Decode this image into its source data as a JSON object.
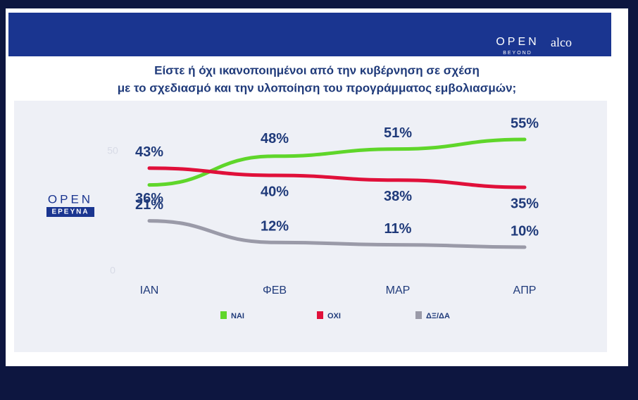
{
  "branding": {
    "open": "OPEN",
    "beyond": "BEYOND",
    "alco": "alco",
    "side_open": "OPEN",
    "side_research": "ΕΡΕΥΝΑ"
  },
  "chart_data": {
    "type": "line",
    "title": "Είστε ή όχι ικανοποιημένοι από την κυβέρνηση σε σχέση",
    "subtitle": "με το σχεδιασμό και την υλοποίηση του προγράμματος εμβολιασμών;",
    "categories": [
      "ΙΑΝ",
      "ΦΕΒ",
      "ΜΑΡ",
      "ΑΠΡ"
    ],
    "series": [
      {
        "name": "ΝΑΙ",
        "color": "#5fd62a",
        "values": [
          36,
          48,
          51,
          55
        ],
        "value_labels": [
          "36%",
          "48%",
          "51%",
          "55%"
        ]
      },
      {
        "name": "ΟΧΙ",
        "color": "#e0103a",
        "values": [
          43,
          40,
          38,
          35
        ],
        "value_labels": [
          "43%",
          "40%",
          "38%",
          "35%"
        ]
      },
      {
        "name": "ΔΞ/ΔΑ",
        "color": "#9a9aa8",
        "values": [
          21,
          12,
          11,
          10
        ],
        "value_labels": [
          "21%",
          "12%",
          "11%",
          "10%"
        ]
      }
    ],
    "ylim": [
      0,
      65
    ],
    "yticks": [
      0,
      50
    ]
  }
}
